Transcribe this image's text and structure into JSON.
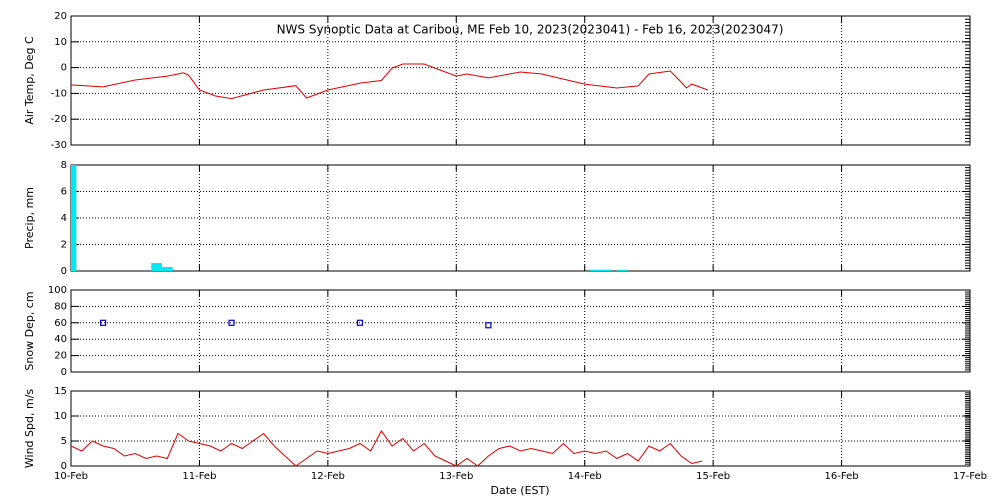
{
  "chart_data": [
    {
      "type": "line",
      "title": "NWS Synoptic Data at Caribou, ME   Feb 10, 2023(2023041) - Feb 16, 2023(2023047)",
      "ylabel": "Air Temp, Deg C",
      "color": "#e00000",
      "ylim": [
        -30,
        20
      ],
      "yticks": [
        -30,
        -20,
        -10,
        0,
        10,
        20
      ],
      "x": [
        0,
        6,
        12,
        18,
        20,
        21,
        22,
        24,
        27,
        30,
        36,
        42,
        44,
        48,
        54,
        58,
        60,
        62,
        66,
        68,
        72,
        74,
        78,
        84,
        88,
        91,
        96,
        102,
        106,
        108,
        112,
        114,
        115,
        116,
        119
      ],
      "values": [
        -6.7,
        -7.5,
        -4.8,
        -3.3,
        -2.5,
        -2,
        -3,
        -8.7,
        -11,
        -12,
        -8.7,
        -7,
        -11.8,
        -8.7,
        -6,
        -5,
        -0.2,
        1.4,
        1.4,
        -0.2,
        -3.3,
        -2.5,
        -4,
        -1.7,
        -2.5,
        -4,
        -6.4,
        -7.9,
        -7.1,
        -2.5,
        -1.3,
        -5.6,
        -7.9,
        -6.4,
        -8.7
      ]
    },
    {
      "type": "bar",
      "ylabel": "Precip, mm",
      "color": "#00e8f0",
      "ylim": [
        0,
        8
      ],
      "yticks": [
        0,
        2,
        4,
        6,
        8
      ],
      "x": [
        0,
        16,
        18,
        98,
        100,
        103
      ],
      "values": [
        8,
        0.6,
        0.3,
        0.1,
        0.1,
        0.1
      ]
    },
    {
      "type": "scatter",
      "ylabel": "Snow Dep, cm",
      "color": "#0000c0",
      "ylim": [
        0,
        100
      ],
      "yticks": [
        0,
        20,
        40,
        60,
        80,
        100
      ],
      "x": [
        6,
        30,
        54,
        78
      ],
      "values": [
        60,
        60,
        60,
        57
      ]
    },
    {
      "type": "line",
      "ylabel": "Wind Spd, m/s",
      "xlabel": "Date (EST)",
      "color": "#e00000",
      "ylim": [
        0,
        15
      ],
      "yticks": [
        0,
        5,
        10,
        15
      ],
      "xlim": [
        0,
        168
      ],
      "xticks": [
        {
          "value": 0,
          "label": "10-Feb"
        },
        {
          "value": 24,
          "label": "11-Feb"
        },
        {
          "value": 48,
          "label": "12-Feb"
        },
        {
          "value": 72,
          "label": "13-Feb"
        },
        {
          "value": 96,
          "label": "14-Feb"
        },
        {
          "value": 120,
          "label": "15-Feb"
        },
        {
          "value": 144,
          "label": "16-Feb"
        },
        {
          "value": 168,
          "label": "17-Feb"
        }
      ],
      "x": [
        0,
        2,
        4,
        6,
        8,
        10,
        12,
        14,
        16,
        18,
        20,
        22,
        24,
        26,
        28,
        30,
        32,
        34,
        36,
        38,
        40,
        42,
        44,
        46,
        48,
        50,
        52,
        54,
        56,
        58,
        60,
        62,
        64,
        66,
        68,
        70,
        72,
        74,
        76,
        78,
        80,
        82,
        84,
        86,
        88,
        90,
        92,
        94,
        96,
        98,
        100,
        102,
        104,
        106,
        108,
        110,
        112,
        114,
        116,
        118
      ],
      "values": [
        4,
        3,
        5,
        4,
        3.5,
        2,
        2.5,
        1.5,
        2,
        1.5,
        6.5,
        5,
        4.5,
        4,
        3,
        4.5,
        3.5,
        5,
        6.5,
        4,
        2,
        0,
        1.5,
        3,
        2.5,
        3,
        3.5,
        4.5,
        3,
        7,
        4,
        5.5,
        3,
        4.5,
        2,
        1,
        0,
        1.5,
        0,
        2,
        3.5,
        4,
        3,
        3.5,
        3,
        2.5,
        4.5,
        2.5,
        3,
        2.5,
        3,
        1.5,
        2.5,
        1,
        4,
        3,
        4.5,
        2,
        0.5,
        1
      ]
    }
  ]
}
